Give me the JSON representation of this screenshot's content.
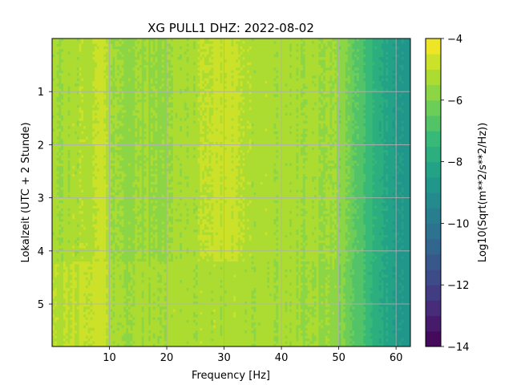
{
  "chart_data": {
    "type": "heatmap",
    "title": "XG PULL1  DHZ: 2022-08-02",
    "xlabel": "Frequency [Hz]",
    "ylabel": "Lokalzeit (UTC + 2 Stunde)",
    "xlim": [
      0,
      62.5
    ],
    "ylim": [
      5.8,
      0.0
    ],
    "x_ticks": [
      10,
      20,
      30,
      40,
      50,
      60
    ],
    "x_tick_labels": [
      "10",
      "20",
      "30",
      "40",
      "50",
      "60"
    ],
    "y_ticks": [
      1,
      2,
      3,
      4,
      5
    ],
    "y_tick_labels": [
      "1",
      "2",
      "3",
      "4",
      "5"
    ],
    "grid": true,
    "colorscale": "viridis",
    "colorbar": {
      "label": "Log10(Sqrt(m**2/s**2/Hz))",
      "range": [
        -14,
        -4
      ],
      "levels": 20,
      "ticks": [
        -4,
        -6,
        -8,
        -10,
        -12,
        -14
      ],
      "tick_labels": [
        "−4",
        "−6",
        "−8",
        "−10",
        "−12",
        "−14"
      ]
    },
    "spectrum_profile": {
      "frequency_hz": [
        0,
        2,
        4,
        6,
        8,
        9,
        10,
        12,
        15,
        18,
        20,
        22,
        24,
        26,
        28,
        30,
        32,
        34,
        36,
        38,
        40,
        42,
        44,
        46,
        48,
        50,
        52,
        54,
        56,
        58,
        60,
        62.5
      ],
      "log10_amplitude_before_hour_4_2": [
        -5.4,
        -5.4,
        -5.3,
        -5.1,
        -4.9,
        -4.8,
        -5.3,
        -5.6,
        -5.6,
        -5.5,
        -5.5,
        -5.4,
        -5.3,
        -5.1,
        -4.9,
        -4.8,
        -5.0,
        -5.2,
        -5.3,
        -5.3,
        -5.3,
        -5.4,
        -5.4,
        -5.4,
        -5.5,
        -5.7,
        -6.2,
        -6.8,
        -7.4,
        -8.0,
        -8.5,
        -8.9
      ],
      "log10_amplitude_after_hour_4_2": [
        -5.1,
        -5.1,
        -5.0,
        -4.9,
        -4.7,
        -4.7,
        -5.2,
        -5.5,
        -5.4,
        -5.3,
        -5.3,
        -5.3,
        -5.3,
        -5.3,
        -5.3,
        -5.3,
        -5.3,
        -5.3,
        -5.4,
        -5.4,
        -5.4,
        -5.4,
        -5.5,
        -5.5,
        -5.6,
        -5.9,
        -6.3,
        -6.9,
        -7.5,
        -8.0,
        -8.5,
        -8.9
      ]
    },
    "regime_change_hour": 4.2
  }
}
